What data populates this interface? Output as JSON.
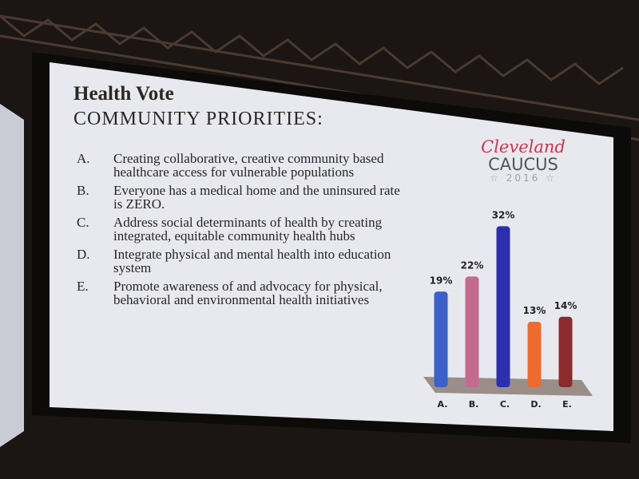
{
  "slide": {
    "title": "Health Vote",
    "subtitle": "COMMUNITY PRIORITIES:",
    "items": [
      {
        "letter": "A.",
        "text": "Creating collaborative, creative community based healthcare access for vulnerable populations"
      },
      {
        "letter": "B.",
        "text": "Everyone has a medical home and the uninsured rate is ZERO."
      },
      {
        "letter": "C.",
        "text": "Address social determinants of health by creating integrated, equitable community health hubs"
      },
      {
        "letter": "D.",
        "text": "Integrate physical and mental health into education system"
      },
      {
        "letter": "E.",
        "text": "Promote awareness of and advocacy for physical, behavioral and environmental health initiatives"
      }
    ],
    "logo": {
      "line1": "Cleveland",
      "line2": "CAUCUS",
      "line3": "☆ 2016 ☆"
    }
  },
  "chart_data": {
    "type": "bar",
    "categories": [
      "A.",
      "B.",
      "C.",
      "D.",
      "E."
    ],
    "values": [
      19,
      22,
      32,
      13,
      14
    ],
    "value_labels": [
      "19%",
      "22%",
      "32%",
      "13%",
      "14%"
    ],
    "colors": [
      "#3c5fc8",
      "#c46a90",
      "#2b2fae",
      "#ef6a2e",
      "#8a2c2e"
    ]
  }
}
